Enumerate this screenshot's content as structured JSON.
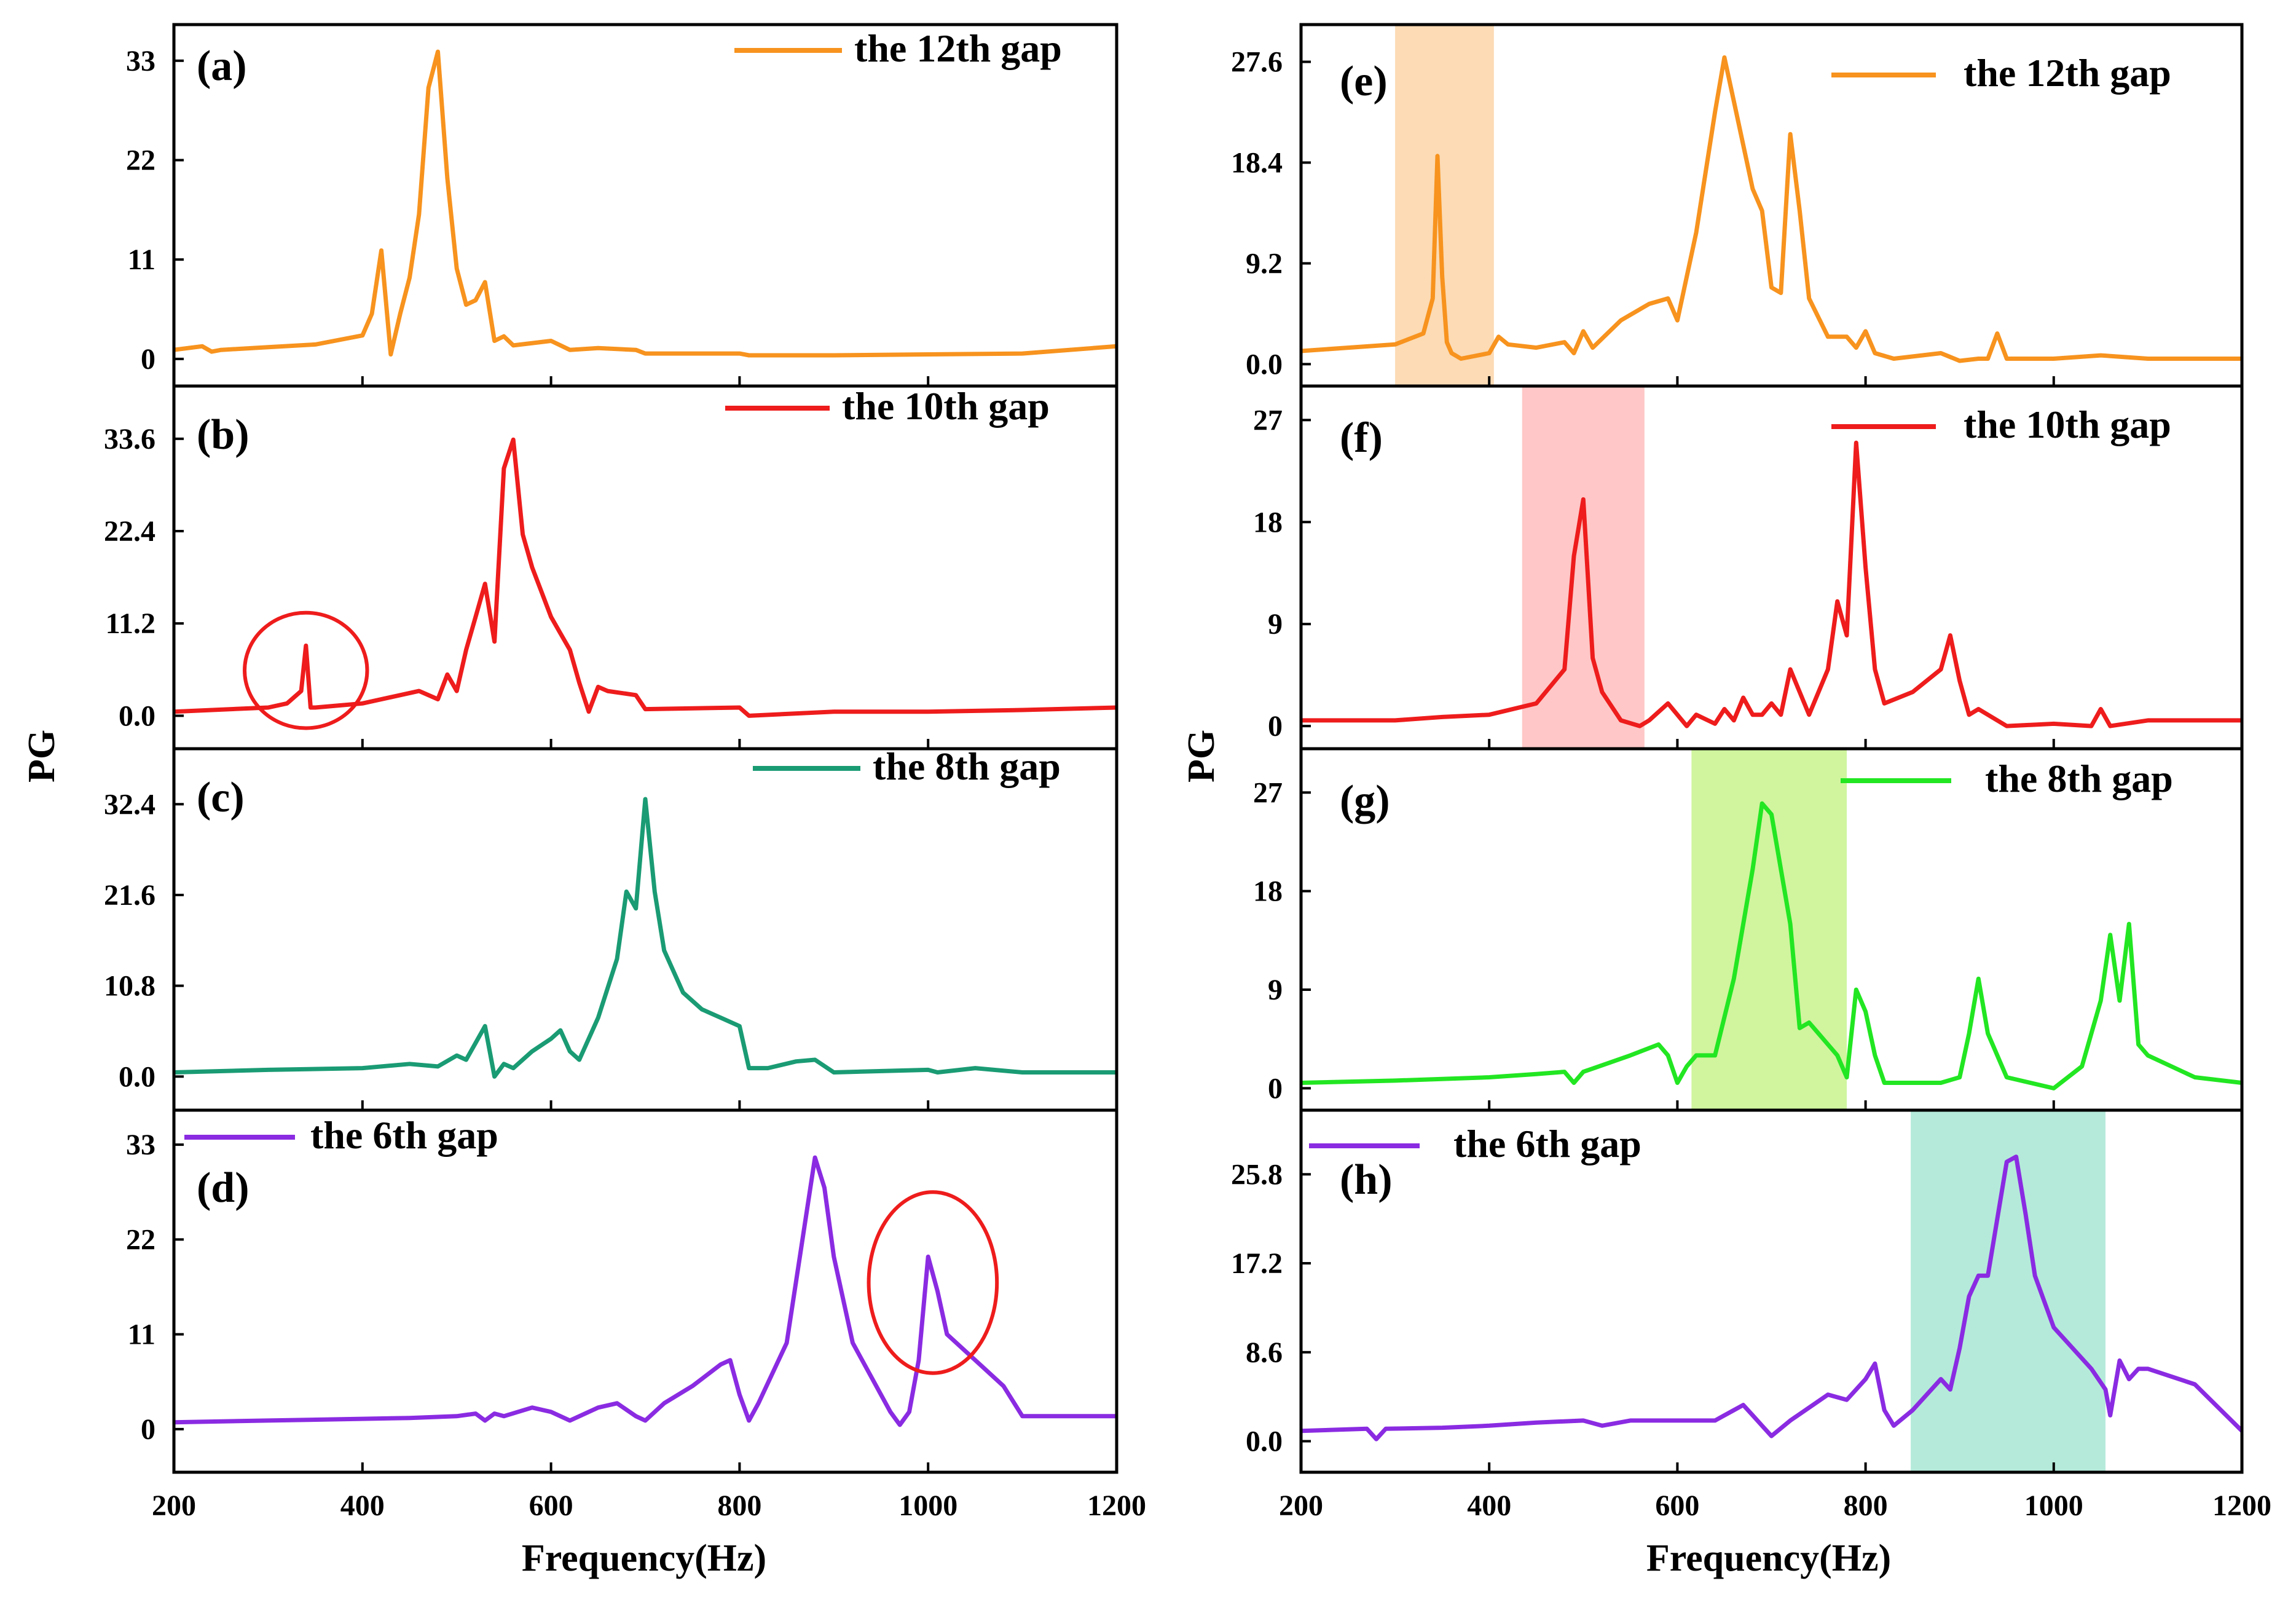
{
  "figure": {
    "left_ylabel": "PG",
    "right_ylabel": "PG",
    "left_xlabel": "Frequency(Hz)",
    "right_xlabel": "Frequency(Hz)"
  },
  "chart_data": [
    {
      "type": "line",
      "panel": "a",
      "series_name": "the 12th gap",
      "color": "#f7931e",
      "xlim": [
        200,
        1200
      ],
      "ylim": [
        -3,
        37
      ],
      "yticks": [
        0,
        11,
        22,
        33
      ],
      "ytick_labels": [
        "0",
        "11",
        "22",
        "33"
      ],
      "x": [
        200,
        230,
        240,
        250,
        300,
        350,
        400,
        410,
        420,
        430,
        440,
        450,
        460,
        470,
        480,
        490,
        500,
        510,
        520,
        530,
        540,
        550,
        560,
        600,
        620,
        650,
        690,
        700,
        800,
        810,
        900,
        1000,
        1100,
        1200
      ],
      "y": [
        1.0,
        1.4,
        0.8,
        1.0,
        1.3,
        1.6,
        2.6,
        5.0,
        12.0,
        0.5,
        5.0,
        9.0,
        16.0,
        30.0,
        34.0,
        20.0,
        10.0,
        6.0,
        6.5,
        8.5,
        2.0,
        2.5,
        1.5,
        2.0,
        1.0,
        1.2,
        1.0,
        0.6,
        0.6,
        0.4,
        0.4,
        0.5,
        0.6,
        1.4
      ],
      "regions": [],
      "circles": []
    },
    {
      "type": "line",
      "panel": "b",
      "series_name": "the 10th gap",
      "color": "#ee1c1c",
      "xlim": [
        200,
        1200
      ],
      "ylim": [
        -4,
        40
      ],
      "yticks": [
        0,
        11.2,
        22.4,
        33.6
      ],
      "ytick_labels": [
        "0.0",
        "11.2",
        "22.4",
        "33.6"
      ],
      "x": [
        200,
        300,
        320,
        335,
        340,
        345,
        350,
        400,
        440,
        460,
        480,
        490,
        500,
        510,
        520,
        530,
        540,
        550,
        560,
        570,
        580,
        590,
        600,
        610,
        620,
        630,
        640,
        650,
        660,
        690,
        700,
        800,
        810,
        900,
        1000,
        1100,
        1200
      ],
      "y": [
        0.5,
        1.0,
        1.5,
        3.0,
        8.5,
        1.0,
        1.0,
        1.5,
        2.5,
        3.0,
        2.0,
        5.0,
        3.0,
        8.0,
        12.0,
        16.0,
        9.0,
        30.0,
        33.5,
        22.0,
        18.0,
        15.0,
        12.0,
        10.0,
        8.0,
        4.0,
        0.5,
        3.5,
        3.0,
        2.5,
        0.8,
        1.0,
        0.0,
        0.5,
        0.5,
        0.7,
        1.0
      ],
      "regions": [],
      "circles": [
        {
          "cx": 340,
          "cy": 5.5,
          "rx": 65,
          "ry": 7.0,
          "color": "#ee1c1c"
        }
      ]
    },
    {
      "type": "line",
      "panel": "c",
      "series_name": "the 8th gap",
      "color": "#1a9b73",
      "xlim": [
        200,
        1200
      ],
      "ylim": [
        -4,
        39
      ],
      "yticks": [
        0,
        10.8,
        21.6,
        32.4
      ],
      "ytick_labels": [
        "0.0",
        "10.8",
        "21.6",
        "32.4"
      ],
      "x": [
        200,
        300,
        400,
        450,
        480,
        500,
        510,
        520,
        530,
        540,
        550,
        560,
        580,
        600,
        610,
        620,
        630,
        650,
        670,
        680,
        690,
        700,
        710,
        720,
        740,
        760,
        780,
        800,
        810,
        830,
        860,
        880,
        900,
        1000,
        1010,
        1050,
        1100,
        1200
      ],
      "y": [
        0.5,
        0.8,
        1.0,
        1.5,
        1.2,
        2.5,
        2.0,
        4.0,
        6.0,
        0.0,
        1.5,
        1.0,
        3.0,
        4.5,
        5.5,
        3.0,
        2.0,
        7.0,
        14.0,
        22.0,
        20.0,
        33.0,
        22.0,
        15.0,
        10.0,
        8.0,
        7.0,
        6.0,
        1.0,
        1.0,
        1.8,
        2.0,
        0.5,
        0.8,
        0.5,
        1.0,
        0.5,
        0.5
      ],
      "regions": [],
      "circles": []
    },
    {
      "type": "line",
      "panel": "d",
      "series_name": "the 6th gap",
      "color": "#8a2be2",
      "xlim": [
        200,
        1200
      ],
      "ylim": [
        -5,
        37
      ],
      "yticks": [
        0,
        11,
        22,
        33
      ],
      "ytick_labels": [
        "0",
        "11",
        "22",
        "33"
      ],
      "x": [
        200,
        300,
        400,
        450,
        500,
        520,
        530,
        540,
        550,
        580,
        600,
        620,
        650,
        670,
        690,
        700,
        720,
        750,
        780,
        790,
        800,
        810,
        820,
        850,
        880,
        890,
        900,
        920,
        960,
        970,
        980,
        990,
        1000,
        1010,
        1020,
        1040,
        1060,
        1080,
        1100,
        1150,
        1200
      ],
      "y": [
        0.8,
        1.0,
        1.2,
        1.3,
        1.5,
        1.8,
        1.0,
        1.8,
        1.5,
        2.5,
        2.0,
        1.0,
        2.5,
        3.0,
        1.5,
        1.0,
        3.0,
        5.0,
        7.5,
        8.0,
        4.0,
        1.0,
        3.0,
        10.0,
        31.5,
        28.0,
        20.0,
        10.0,
        2.0,
        0.5,
        2.0,
        8.0,
        20.0,
        16.0,
        11.0,
        9.0,
        7.0,
        5.0,
        1.5,
        1.5,
        1.5
      ],
      "regions": [],
      "circles": [
        {
          "cx": 1005,
          "cy": 17,
          "rx": 68,
          "ry": 10.5,
          "color": "#ee1c1c"
        }
      ]
    },
    {
      "type": "line",
      "panel": "e",
      "series_name": "the 12th gap",
      "color": "#f7931e",
      "xlim": [
        200,
        1200
      ],
      "ylim": [
        -2,
        31
      ],
      "yticks": [
        0,
        9.2,
        18.4,
        27.6
      ],
      "ytick_labels": [
        "0.0",
        "9.2",
        "18.4",
        "27.6"
      ],
      "x": [
        200,
        300,
        330,
        340,
        345,
        350,
        355,
        360,
        370,
        400,
        410,
        420,
        450,
        480,
        490,
        500,
        510,
        540,
        570,
        590,
        600,
        620,
        640,
        650,
        660,
        670,
        680,
        690,
        700,
        710,
        720,
        730,
        740,
        760,
        780,
        790,
        800,
        810,
        830,
        880,
        900,
        920,
        930,
        940,
        950,
        1000,
        1050,
        1100,
        1200
      ],
      "y": [
        1.2,
        1.8,
        2.8,
        6.0,
        19.0,
        8.0,
        2.0,
        1.0,
        0.5,
        1.0,
        2.5,
        1.8,
        1.5,
        2.0,
        1.0,
        3.0,
        1.5,
        4.0,
        5.5,
        6.0,
        4.0,
        12.0,
        23.0,
        28.0,
        24.0,
        20.0,
        16.0,
        14.0,
        7.0,
        6.5,
        21.0,
        14.0,
        6.0,
        2.5,
        2.5,
        1.5,
        3.0,
        1.0,
        0.5,
        1.0,
        0.3,
        0.5,
        0.5,
        2.8,
        0.5,
        0.5,
        0.8,
        0.5,
        0.5
      ],
      "regions": [
        {
          "x0": 300,
          "x1": 405,
          "color": "#f7931e",
          "opacity": 0.33
        }
      ],
      "circles": []
    },
    {
      "type": "line",
      "panel": "f",
      "series_name": "the 10th gap",
      "color": "#ee1c1c",
      "xlim": [
        200,
        1200
      ],
      "ylim": [
        -2,
        30
      ],
      "yticks": [
        0,
        9,
        18,
        27
      ],
      "ytick_labels": [
        "0",
        "9",
        "18",
        "27"
      ],
      "x": [
        200,
        300,
        350,
        400,
        450,
        480,
        490,
        500,
        510,
        520,
        540,
        560,
        570,
        590,
        610,
        620,
        640,
        650,
        660,
        670,
        680,
        690,
        700,
        710,
        720,
        730,
        740,
        760,
        770,
        780,
        790,
        800,
        810,
        820,
        850,
        880,
        890,
        900,
        910,
        920,
        950,
        1000,
        1040,
        1050,
        1060,
        1100,
        1200
      ],
      "y": [
        0.5,
        0.5,
        0.8,
        1.0,
        2.0,
        5.0,
        15.0,
        20.0,
        6.0,
        3.0,
        0.5,
        0.0,
        0.5,
        2.0,
        0.0,
        1.0,
        0.2,
        1.5,
        0.5,
        2.5,
        1.0,
        1.0,
        2.0,
        1.0,
        5.0,
        3.0,
        1.0,
        5.0,
        11.0,
        8.0,
        25.0,
        14.0,
        5.0,
        2.0,
        3.0,
        5.0,
        8.0,
        4.0,
        1.0,
        1.5,
        0.0,
        0.2,
        0.0,
        1.5,
        0.0,
        0.5,
        0.5
      ],
      "regions": [
        {
          "x0": 435,
          "x1": 565,
          "color": "#ff6b6b",
          "opacity": 0.38
        }
      ],
      "circles": []
    },
    {
      "type": "line",
      "panel": "g",
      "series_name": "the 8th gap",
      "color": "#22e622",
      "xlim": [
        200,
        1200
      ],
      "ylim": [
        -2,
        31
      ],
      "yticks": [
        0,
        9,
        18,
        27
      ],
      "ytick_labels": [
        "0",
        "9",
        "18",
        "27"
      ],
      "x": [
        200,
        300,
        400,
        450,
        480,
        490,
        500,
        510,
        550,
        580,
        590,
        600,
        610,
        620,
        640,
        660,
        680,
        690,
        700,
        710,
        720,
        730,
        740,
        750,
        760,
        770,
        780,
        790,
        800,
        810,
        820,
        840,
        880,
        900,
        910,
        920,
        930,
        950,
        1000,
        1030,
        1050,
        1060,
        1070,
        1080,
        1090,
        1100,
        1150,
        1200
      ],
      "y": [
        0.5,
        0.7,
        1.0,
        1.3,
        1.5,
        0.5,
        1.5,
        1.8,
        3.0,
        4.0,
        3.0,
        0.5,
        2.0,
        3.0,
        3.0,
        10.0,
        20.0,
        26.0,
        25.0,
        20.0,
        15.0,
        5.5,
        6.0,
        5.0,
        4.0,
        3.0,
        1.0,
        9.0,
        7.0,
        3.0,
        0.5,
        0.5,
        0.5,
        1.0,
        5.0,
        10.0,
        5.0,
        1.0,
        0.0,
        2.0,
        8.0,
        14.0,
        8.0,
        15.0,
        4.0,
        3.0,
        1.0,
        0.5
      ],
      "regions": [
        {
          "x0": 615,
          "x1": 780,
          "color": "#8fe619",
          "opacity": 0.42
        }
      ],
      "circles": []
    },
    {
      "type": "line",
      "panel": "h",
      "series_name": "the 6th gap",
      "color": "#8a2be2",
      "xlim": [
        200,
        1200
      ],
      "ylim": [
        -3,
        32
      ],
      "yticks": [
        0,
        8.6,
        17.2,
        25.8
      ],
      "ytick_labels": [
        "0.0",
        "8.6",
        "17.2",
        "25.8"
      ],
      "x": [
        200,
        270,
        280,
        290,
        350,
        400,
        450,
        500,
        520,
        550,
        580,
        600,
        640,
        660,
        670,
        680,
        690,
        700,
        720,
        760,
        780,
        790,
        800,
        810,
        820,
        830,
        850,
        880,
        890,
        900,
        910,
        920,
        930,
        950,
        960,
        970,
        980,
        1000,
        1040,
        1055,
        1060,
        1070,
        1080,
        1090,
        1100,
        1150,
        1200
      ],
      "y": [
        1.0,
        1.2,
        0.2,
        1.2,
        1.3,
        1.5,
        1.8,
        2.0,
        1.5,
        2.0,
        2.0,
        2.0,
        2.0,
        3.0,
        3.5,
        2.5,
        1.5,
        0.5,
        2.0,
        4.5,
        4.0,
        5.0,
        6.0,
        7.5,
        3.0,
        1.5,
        3.0,
        6.0,
        5.0,
        9.0,
        14.0,
        16.0,
        16.0,
        27.0,
        27.5,
        22.0,
        16.0,
        11.0,
        7.0,
        5.0,
        2.5,
        7.8,
        6.0,
        7.0,
        7.0,
        5.5,
        1.0
      ],
      "regions": [
        {
          "x0": 848,
          "x1": 1055,
          "color": "#1fc08e",
          "opacity": 0.33
        }
      ],
      "circles": []
    }
  ]
}
